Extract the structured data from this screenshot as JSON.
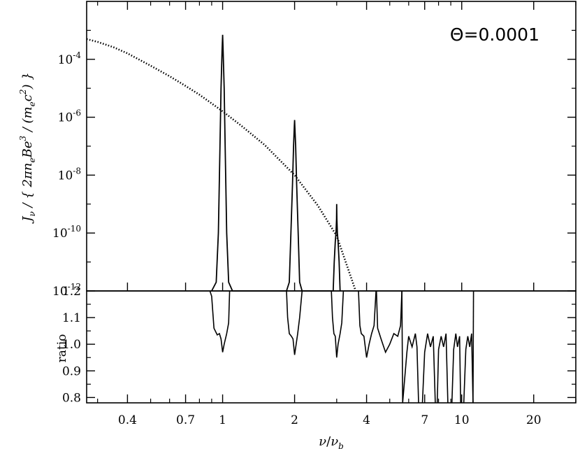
{
  "chart_data": [
    {
      "type": "line",
      "panel": "top",
      "x_scale": "log",
      "y_scale": "log",
      "xlim": [
        0.27,
        30
      ],
      "ylim": [
        1e-12,
        0.01
      ],
      "ylabel": "J_ν / { 2πn_eBe^3 / (m_ec^2) }",
      "ylabel_parts": {
        "pre": "J",
        "sub1": "ν",
        "mid": " / { 2πn",
        "sub2": "e",
        "mid2": "Be",
        "sup1": "3",
        "mid3": " / (m",
        "sub3": "e",
        "mid4": "c",
        "sup2": "2",
        "post": ") }"
      },
      "yticks": [
        {
          "value": 0.0001,
          "base": "10",
          "exp": "-4"
        },
        {
          "value": 1e-06,
          "base": "10",
          "exp": "-6"
        },
        {
          "value": 1e-08,
          "base": "10",
          "exp": "-8"
        },
        {
          "value": 1e-10,
          "base": "10",
          "exp": "-10"
        },
        {
          "value": 1e-12,
          "base": "10",
          "exp": "-12"
        }
      ],
      "annotation": "Θ=0.0001",
      "series": [
        {
          "style": "solid",
          "points": [
            [
              0.9,
              1e-12
            ],
            [
              0.94,
              2e-12
            ],
            [
              0.96,
              1e-10
            ],
            [
              0.975,
              1e-07
            ],
            [
              0.985,
              1e-05
            ],
            [
              0.995,
              0.0002
            ],
            [
              1.0,
              0.0007
            ],
            [
              1.005,
              0.0002
            ],
            [
              1.015,
              1e-05
            ],
            [
              1.025,
              1e-07
            ],
            [
              1.04,
              1e-10
            ],
            [
              1.06,
              2e-12
            ],
            [
              1.1,
              1e-12
            ],
            [
              1.85,
              1e-12
            ],
            [
              1.9,
              2e-12
            ],
            [
              1.93,
              1e-10
            ],
            [
              1.96,
              5e-09
            ],
            [
              1.98,
              1e-07
            ],
            [
              1.995,
              5e-07
            ],
            [
              2.0,
              8e-07
            ],
            [
              2.005,
              5e-07
            ],
            [
              2.02,
              1e-07
            ],
            [
              2.04,
              5e-09
            ],
            [
              2.07,
              1e-10
            ],
            [
              2.1,
              2e-12
            ],
            [
              2.15,
              1e-12
            ],
            [
              2.9,
              1e-12
            ],
            [
              2.93,
              1e-11
            ],
            [
              2.96,
              5e-11
            ],
            [
              2.98,
              1e-10
            ],
            [
              2.995,
              3e-10
            ],
            [
              3.0,
              1e-09
            ],
            [
              3.005,
              3e-10
            ],
            [
              3.02,
              1e-10
            ],
            [
              3.04,
              5e-11
            ],
            [
              3.07,
              1e-11
            ],
            [
              3.1,
              1e-12
            ]
          ]
        },
        {
          "style": "dotted",
          "points": [
            [
              0.27,
              0.0005
            ],
            [
              0.3,
              0.0004
            ],
            [
              0.35,
              0.00026
            ],
            [
              0.4,
              0.00016
            ],
            [
              0.5,
              6e-05
            ],
            [
              0.6,
              2.6e-05
            ],
            [
              0.7,
              1.2e-05
            ],
            [
              0.8,
              6e-06
            ],
            [
              1.0,
              1.6e-06
            ],
            [
              1.2,
              5e-07
            ],
            [
              1.5,
              1.1e-07
            ],
            [
              2.0,
              1e-08
            ],
            [
              2.5,
              9e-10
            ],
            [
              3.0,
              8e-11
            ],
            [
              3.5,
              2e-12
            ],
            [
              3.6,
              1e-12
            ]
          ]
        }
      ]
    },
    {
      "type": "line",
      "panel": "bottom",
      "x_scale": "log",
      "xlim": [
        0.27,
        30
      ],
      "ylim": [
        0.78,
        1.2
      ],
      "ylabel": "ratio",
      "xlabel_parts": {
        "a": "ν",
        "sep": "/",
        "b": "ν",
        "b_sub": "b"
      },
      "yticks": [
        "1.2",
        "1.1",
        "1.0",
        "0.9",
        "0.8"
      ],
      "ytick_values": [
        1.2,
        1.1,
        1.0,
        0.9,
        0.8
      ],
      "xticks": [
        "0.4",
        "0.7",
        "1",
        "2",
        "4",
        "7",
        "10",
        "20"
      ],
      "xtick_values": [
        0.4,
        0.7,
        1,
        2,
        4,
        7,
        10,
        20
      ],
      "series": [
        {
          "style": "solid",
          "points": [
            [
              0.885,
              1.2
            ],
            [
              0.9,
              1.18
            ],
            [
              0.92,
              1.06
            ],
            [
              0.95,
              1.035
            ],
            [
              0.97,
              1.04
            ],
            [
              0.985,
              1.02
            ],
            [
              1.0,
              0.97
            ],
            [
              1.015,
              1.0
            ],
            [
              1.04,
              1.04
            ],
            [
              1.06,
              1.08
            ],
            [
              1.07,
              1.2
            ]
          ]
        },
        {
          "style": "solid",
          "points": [
            [
              1.85,
              1.2
            ],
            [
              1.87,
              1.1
            ],
            [
              1.9,
              1.04
            ],
            [
              1.94,
              1.03
            ],
            [
              1.97,
              1.02
            ],
            [
              2.0,
              0.96
            ],
            [
              2.03,
              1.0
            ],
            [
              2.06,
              1.04
            ],
            [
              2.1,
              1.1
            ],
            [
              2.15,
              1.2
            ]
          ]
        },
        {
          "style": "solid",
          "points": [
            [
              2.85,
              1.2
            ],
            [
              2.88,
              1.1
            ],
            [
              2.92,
              1.04
            ],
            [
              2.96,
              1.03
            ],
            [
              3.0,
              0.95
            ],
            [
              3.04,
              1.0
            ],
            [
              3.1,
              1.04
            ],
            [
              3.15,
              1.08
            ],
            [
              3.2,
              1.2
            ]
          ]
        },
        {
          "style": "solid",
          "points": [
            [
              3.7,
              1.2
            ],
            [
              3.75,
              1.07
            ],
            [
              3.8,
              1.04
            ],
            [
              3.9,
              1.03
            ],
            [
              4.0,
              0.95
            ],
            [
              4.1,
              1.0
            ],
            [
              4.2,
              1.04
            ],
            [
              4.3,
              1.07
            ],
            [
              4.38,
              1.2
            ]
          ]
        },
        {
          "style": "solid",
          "points": [
            [
              4.4,
              1.2
            ],
            [
              4.45,
              1.06
            ],
            [
              4.6,
              1.02
            ],
            [
              4.8,
              0.97
            ],
            [
              5.0,
              1.0
            ],
            [
              5.2,
              1.04
            ],
            [
              5.4,
              1.03
            ],
            [
              5.55,
              1.07
            ],
            [
              5.62,
              1.2
            ]
          ]
        },
        {
          "style": "solid",
          "points": [
            [
              5.62,
              1.2
            ],
            [
              5.66,
              0.78
            ],
            [
              5.9,
              0.97
            ],
            [
              6.0,
              1.03
            ],
            [
              6.2,
              0.99
            ],
            [
              6.4,
              1.04
            ],
            [
              6.5,
              0.99
            ],
            [
              6.6,
              0.78
            ]
          ]
        },
        {
          "style": "solid",
          "points": [
            [
              6.85,
              0.78
            ],
            [
              7.0,
              0.97
            ],
            [
              7.2,
              1.04
            ],
            [
              7.4,
              0.99
            ],
            [
              7.6,
              1.03
            ],
            [
              7.75,
              0.78
            ]
          ]
        },
        {
          "style": "solid",
          "points": [
            [
              7.9,
              0.78
            ],
            [
              8.0,
              0.98
            ],
            [
              8.2,
              1.03
            ],
            [
              8.4,
              0.99
            ],
            [
              8.6,
              1.04
            ],
            [
              8.75,
              0.78
            ]
          ]
        },
        {
          "style": "solid",
          "points": [
            [
              9.1,
              0.78
            ],
            [
              9.25,
              0.98
            ],
            [
              9.45,
              1.04
            ],
            [
              9.6,
              0.99
            ],
            [
              9.8,
              1.03
            ],
            [
              9.9,
              0.78
            ]
          ]
        },
        {
          "style": "solid",
          "points": [
            [
              10.2,
              0.78
            ],
            [
              10.4,
              0.98
            ],
            [
              10.6,
              1.03
            ],
            [
              10.8,
              0.99
            ],
            [
              11.0,
              1.04
            ],
            [
              11.15,
              0.78
            ]
          ]
        },
        {
          "style": "solid",
          "points": [
            [
              11.15,
              0.78
            ],
            [
              11.2,
              1.2
            ]
          ]
        }
      ]
    }
  ]
}
